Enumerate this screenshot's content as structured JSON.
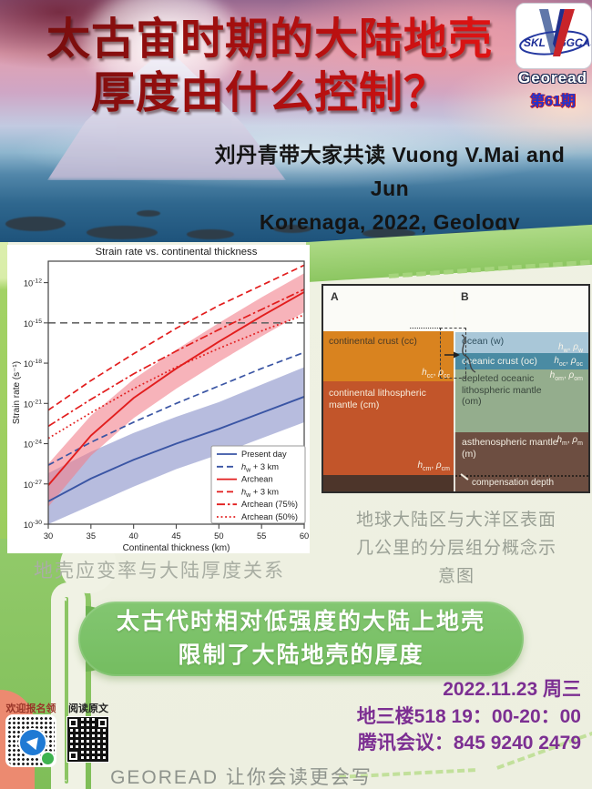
{
  "hero": {
    "title_line1": "太古宙时期的大陆地壳",
    "title_line2": "厚度由什么控制？",
    "subtitle_line1": "刘丹青带大家共读 Vuong V.Mai and Jun",
    "subtitle_line2": "Korenaga, 2022, Geology",
    "logo": {
      "left": "SKL",
      "right": "IGGCAS",
      "brand": "Georead",
      "issue": "第61期"
    }
  },
  "chart_data": {
    "type": "line",
    "title": "Strain rate vs. continental thickness",
    "xlabel": "Continental thickness (km)",
    "ylabel": "Strain rate (s⁻¹)",
    "x": [
      30,
      35,
      40,
      45,
      50,
      55,
      60
    ],
    "xticks": [
      30,
      35,
      40,
      45,
      50,
      55,
      60
    ],
    "yticks_log10": [
      -12,
      -15,
      -18,
      -21,
      -24,
      -27,
      -30
    ],
    "xlim": [
      30,
      60
    ],
    "ylim_log10": [
      -30,
      -10.4
    ],
    "grid": false,
    "legend_position": "lower right",
    "threshold": {
      "log10_value": -15,
      "color": "#666666",
      "style": "dashed"
    },
    "bands": [
      {
        "name": "present-day-uncertainty",
        "color": "#7b85c2",
        "opacity": 0.55,
        "upper_log10": [
          -26.2,
          -24.6,
          -23.2,
          -22.0,
          -20.9,
          -19.6,
          -18.3
        ],
        "lower_log10": [
          -30.0,
          -28.6,
          -27.2,
          -25.9,
          -24.8,
          -23.6,
          -22.4
        ]
      },
      {
        "name": "archean-uncertainty",
        "color": "#f2808c",
        "opacity": 0.6,
        "upper_log10": [
          -25.5,
          -21.9,
          -19.2,
          -17.0,
          -15.0,
          -13.1,
          -11.3
        ],
        "lower_log10": [
          -28.7,
          -24.9,
          -22.1,
          -19.9,
          -17.9,
          -16.0,
          -14.2
        ]
      }
    ],
    "series": [
      {
        "name": "Present day",
        "color": "#3a55a4",
        "style": "solid",
        "log10_values": [
          -28.3,
          -26.6,
          -25.2,
          -24.0,
          -22.9,
          -21.7,
          -20.5
        ]
      },
      {
        "name": "h_{w} + 3 km",
        "color": "#3a55a4",
        "style": "dashed",
        "log10_values": [
          -25.6,
          -23.9,
          -22.4,
          -21.0,
          -19.7,
          -18.4,
          -17.2
        ]
      },
      {
        "name": "Archean",
        "color": "#e21d1d",
        "style": "solid",
        "log10_values": [
          -27.1,
          -23.4,
          -20.6,
          -18.4,
          -16.4,
          -14.5,
          -12.7
        ]
      },
      {
        "name": "h_{w} + 3 km",
        "color": "#e21d1d",
        "style": "dashed",
        "log10_values": [
          -21.5,
          -19.3,
          -17.3,
          -15.4,
          -13.7,
          -12.2,
          -10.7
        ]
      },
      {
        "name": "Archean (75%)",
        "color": "#e21d1d",
        "style": "dashdot",
        "log10_values": [
          -22.7,
          -20.7,
          -18.8,
          -17.1,
          -15.5,
          -14.0,
          -12.5
        ]
      },
      {
        "name": "Archean (50%)",
        "color": "#e21d1d",
        "style": "dotted",
        "log10_values": [
          -23.6,
          -21.7,
          -19.9,
          -18.3,
          -16.9,
          -15.6,
          -14.4
        ]
      }
    ]
  },
  "captions": {
    "chart": "地壳应变率与大陆厚度关系",
    "diagram_line1": "地球大陆区与大洋区表面",
    "diagram_line2": "几公里的分层组分概念示",
    "diagram_line3": "意图"
  },
  "diagram": {
    "panel_a": "A",
    "panel_b": "B",
    "layers_a": [
      {
        "label": "continental crust (cc)",
        "annotation": "h_{cc}, ρ_{cc}",
        "color": "#d9831f",
        "text_color": "#4a3a26"
      },
      {
        "label": "continental lithospheric mantle (cm)",
        "annotation": "h_{cm}, ρ_{cm}",
        "color": "#c2552a",
        "text_color": "#f7eddc"
      },
      {
        "label": "",
        "annotation": "",
        "color": "#4d352a",
        "text_color": "#f7eddc"
      }
    ],
    "layers_b": [
      {
        "label": "ocean (w)",
        "annotation": "h_{w}, ρ_{w}",
        "color": "#a9c7d8",
        "text_color": "#30505f"
      },
      {
        "label": "oceanic crust (oc)",
        "annotation": "h_{oc}, ρ_{oc}",
        "color": "#4a8ba3",
        "text_color": "#f2f3ea"
      },
      {
        "label": "depleted oceanic lithospheric mantle (om)",
        "annotation": "h_{om}, ρ_{om}",
        "color": "#94ad8d",
        "text_color": "#39463c"
      },
      {
        "label": "asthenospheric mantle (m)",
        "annotation": "h_{m}, ρ_{m}",
        "color": "#6d4e41",
        "text_color": "#f2ede1"
      }
    ],
    "compensation_label": "compensation depth"
  },
  "conclusion": {
    "line1": "太古代时相对低强度的大陆上地壳",
    "line2": "限制了大陆地壳的厚度",
    "color": "#7cc268"
  },
  "event": {
    "date": "2022.11.23 周三",
    "venue_time": "地三楼518 19：00-20：00",
    "meeting": "腾讯会议：845 9240 2479",
    "color": "#7c2f92"
  },
  "qr": {
    "label_signup": "欢迎报名领读",
    "label_article": "阅读原文"
  },
  "footer": {
    "slogan": "GEOREAD 让你会读更会写"
  }
}
